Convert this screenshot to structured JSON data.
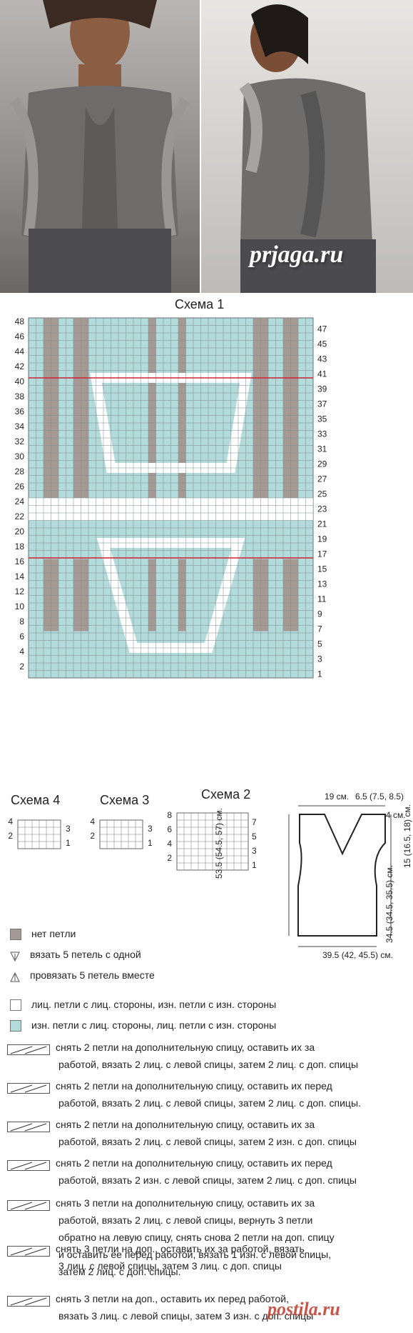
{
  "watermark": "prjaga.ru",
  "schema1": {
    "title": "Схема 1",
    "left_labels": [
      "48",
      "46",
      "44",
      "42",
      "40",
      "38",
      "36",
      "34",
      "32",
      "30",
      "28",
      "26",
      "24",
      "22",
      "20",
      "18",
      "16",
      "14",
      "12",
      "10",
      "8",
      "6",
      "4",
      "2"
    ],
    "right_labels": [
      "47",
      "45",
      "43",
      "41",
      "39",
      "37",
      "35",
      "33",
      "31",
      "29",
      "27",
      "25",
      "23",
      "21",
      "19",
      "17",
      "15",
      "13",
      "11",
      "9",
      "7",
      "5",
      "3",
      "1"
    ]
  },
  "schema4": {
    "title": "Схема 4",
    "left": [
      "4",
      "2"
    ],
    "right": [
      "3",
      "1"
    ]
  },
  "schema3": {
    "title": "Схема 3",
    "left": [
      "4",
      "2"
    ],
    "right": [
      "3",
      "1"
    ]
  },
  "schema2": {
    "title": "Схема 2",
    "left": [
      "8",
      "6",
      "4",
      "2"
    ],
    "right": [
      "7",
      "5",
      "3",
      "1"
    ]
  },
  "measure": {
    "top_width": "19 см.",
    "shoulder": "6.5 (7.5, 8.5)",
    "neck_drop": "4 см.",
    "armhole": "15 (16.5, 18) см.",
    "to_armhole": "34.5 (34.5, 35.5) см.",
    "total_length": "53.5 (54.5, 57) см.",
    "bottom_width": "39.5 (42, 45.5) см."
  },
  "legend": [
    {
      "text": "нет петли",
      "swatch": "#a49a93"
    },
    {
      "text": "вязать 5 петель с одной",
      "symbol": "inc5"
    },
    {
      "text": "провязать 5 петель вместе",
      "symbol": "dec5"
    },
    {
      "text": "лиц. петли с лиц. стороны, изн. петли с изн. стороны",
      "swatch": "#ffffff"
    },
    {
      "text": "изн. петли с лиц. стороны, лиц. петли с изн. стороны",
      "swatch": "#b3dbdc"
    }
  ],
  "cables": [
    {
      "lines": [
        "снять 2 петли на дополнительную спицу, оставить их за",
        "работой, вязать 2 лиц. с левой спицы, затем 2 лиц. с доп. спицы"
      ]
    },
    {
      "lines": [
        "снять 2 петли на дополнительную спицу, оставить их перед",
        "работой, вязать 2 лиц. с левой спицы, затем 2 лиц. с доп. спицы."
      ]
    },
    {
      "lines": [
        "снять 2 петли на дополнительную спицу, оставить их за",
        "работой, вязать 2 лиц. с левой спицы, затем 2 изн. с доп. спицы"
      ]
    },
    {
      "lines": [
        "снять 2 петли на дополнительную спицу, оставить их перед",
        "работой, вязать 2 изн. с левой спицы, затем 2 лиц. с доп. спицы"
      ]
    },
    {
      "lines": [
        "снять 3 петли на дополнительную спицу, оставить их за",
        "работой, вязать 2 лиц. с левой спицы, вернуть 3 петли",
        "обратно на левую спицу, снять снова 2 петли на доп. спицу",
        "и оставить ее перед работой, вязать 1 изн. с левой спицы,",
        "затем 2 лиц. с доп. спицы."
      ]
    },
    {
      "lines": [
        "снять 3 петли на доп., оставить их за работой, вязать",
        "3 лиц. с левой спицы, затем 3 лиц. с доп. спицы"
      ]
    },
    {
      "lines": [
        "снять 3 петли на доп., оставить их перед работой,",
        "вязать 3 лиц. с левой спицы, затем 3 изн. с доп. спицы"
      ]
    }
  ],
  "watermark2": "postila.ru"
}
